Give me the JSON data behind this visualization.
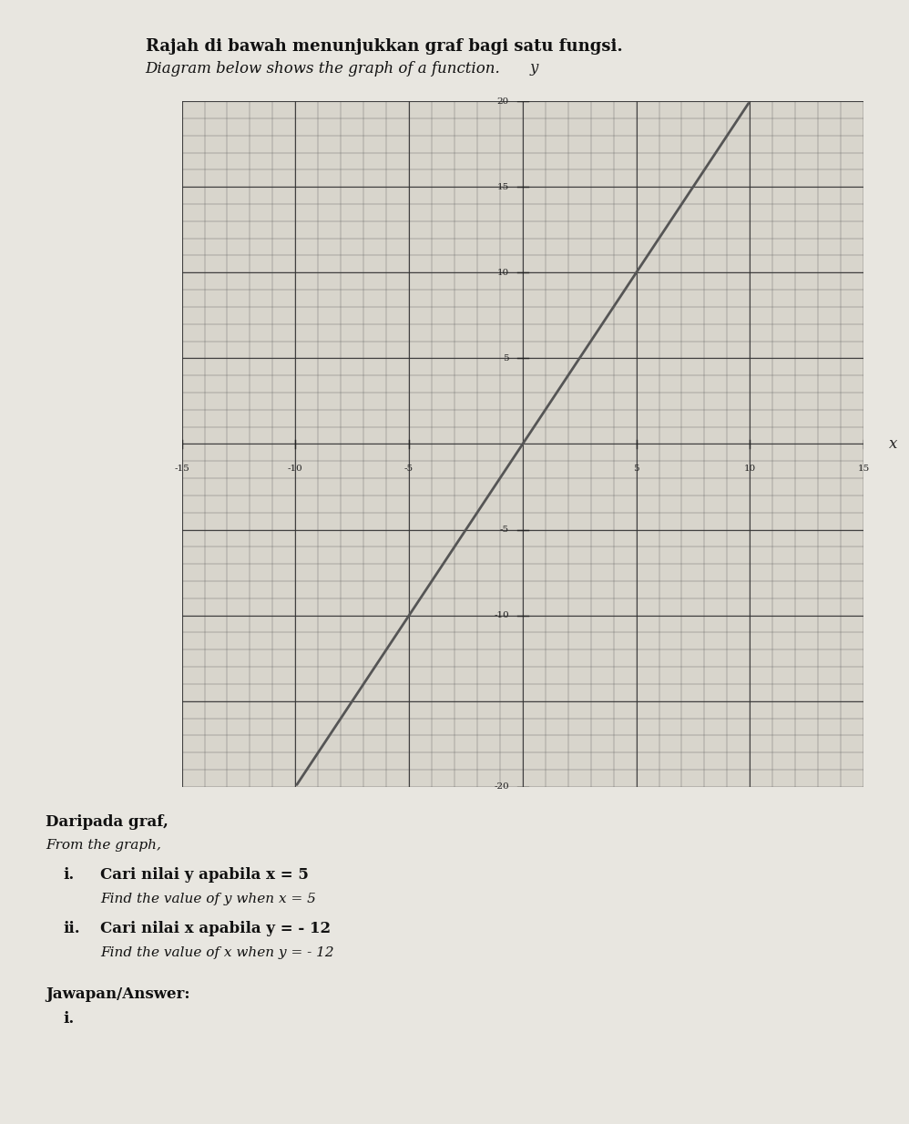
{
  "title_malay": "Rajah di bawah menunjukkan graf bagi satu fungsi.",
  "title_english": "Diagram below shows the graph of a function.",
  "xlabel": "x",
  "ylabel": "y",
  "xlim": [
    -15,
    15
  ],
  "ylim": [
    -20,
    20
  ],
  "xticks": [
    -15,
    -10,
    -5,
    5,
    10,
    15
  ],
  "yticks": [
    -20,
    -10,
    -5,
    5,
    10,
    15,
    20
  ],
  "xtick_labels": [
    "-15",
    "-10",
    "-5",
    "5",
    "10",
    "15"
  ],
  "ytick_labels": [
    "-20",
    "-10",
    "-5",
    "5",
    "10",
    "15",
    "20"
  ],
  "line_color": "#555555",
  "line_width": 2.0,
  "slope": 2,
  "intercept": 0,
  "daripada_graf": "Daripada graf,",
  "from_graph": "From the graph,",
  "q_i_malay": "Cari nilai y apabila x = 5",
  "q_i_english": "Find the value of y when x = 5",
  "q_ii_malay": "Cari nilai x apabila y = - 12",
  "q_ii_english": "Find the value of x when y = - 12",
  "jawapan": "Jawapan/Answer:",
  "fig_width": 9.98,
  "fig_height": 12.34
}
